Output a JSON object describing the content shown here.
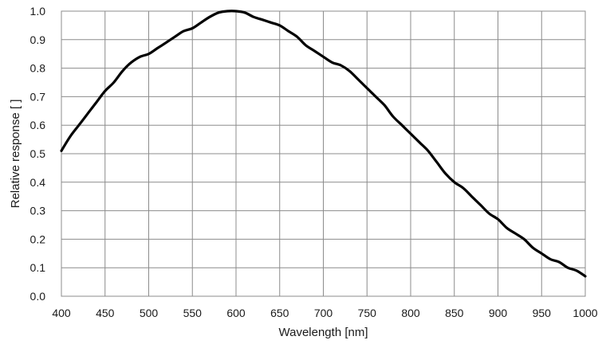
{
  "chart_data": {
    "type": "line",
    "title": "",
    "xlabel": "Wavelength [nm]",
    "ylabel": "Relative response [ ]",
    "xlim": [
      400,
      1000
    ],
    "ylim": [
      0.0,
      1.0
    ],
    "grid": true,
    "legend": "none",
    "x_ticks": [
      "400",
      "450",
      "500",
      "550",
      "600",
      "650",
      "700",
      "750",
      "800",
      "850",
      "900",
      "950",
      "1000"
    ],
    "y_ticks": [
      "0.0",
      "0.1",
      "0.2",
      "0.3",
      "0.4",
      "0.5",
      "0.6",
      "0.7",
      "0.8",
      "0.9",
      "1.0"
    ],
    "line_color": "#000000",
    "grid_color": "#8c8c8c",
    "series": [
      {
        "x": [
          400,
          410,
          420,
          430,
          440,
          450,
          460,
          470,
          480,
          490,
          500,
          510,
          520,
          530,
          540,
          550,
          560,
          570,
          580,
          590,
          600,
          610,
          620,
          630,
          640,
          650,
          660,
          670,
          680,
          690,
          700,
          710,
          720,
          730,
          740,
          750,
          760,
          770,
          780,
          790,
          800,
          810,
          820,
          830,
          840,
          850,
          860,
          870,
          880,
          890,
          900,
          910,
          920,
          930,
          940,
          950,
          960,
          970,
          980,
          990,
          1000
        ],
        "y": [
          0.51,
          0.56,
          0.6,
          0.64,
          0.68,
          0.72,
          0.75,
          0.79,
          0.82,
          0.84,
          0.85,
          0.87,
          0.89,
          0.91,
          0.93,
          0.94,
          0.96,
          0.98,
          0.995,
          1.0,
          1.0,
          0.995,
          0.98,
          0.97,
          0.96,
          0.95,
          0.93,
          0.91,
          0.88,
          0.86,
          0.84,
          0.82,
          0.81,
          0.79,
          0.76,
          0.73,
          0.7,
          0.67,
          0.63,
          0.6,
          0.57,
          0.54,
          0.51,
          0.47,
          0.43,
          0.4,
          0.38,
          0.35,
          0.32,
          0.29,
          0.27,
          0.24,
          0.22,
          0.2,
          0.17,
          0.15,
          0.13,
          0.12,
          0.1,
          0.09,
          0.07
        ]
      }
    ]
  }
}
